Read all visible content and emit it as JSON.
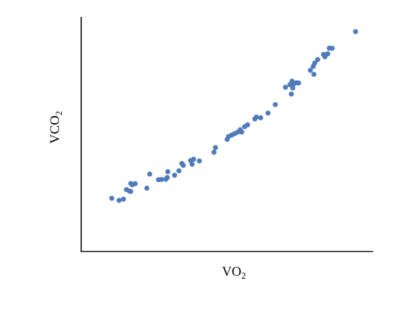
{
  "chart_data": {
    "type": "scatter",
    "title": "",
    "xlabel": {
      "main": "VO",
      "sub": "2"
    },
    "ylabel": {
      "main": "VCO",
      "sub": "2"
    },
    "xlim": [
      0,
      1
    ],
    "ylim": [
      0,
      1
    ],
    "grid": false,
    "legend": "none",
    "tick_labels": false,
    "colors": {
      "points": "#4f7bbd",
      "axes": "#000000"
    },
    "series": [
      {
        "points": [
          [
            0.105,
            0.227
          ],
          [
            0.13,
            0.218
          ],
          [
            0.145,
            0.223
          ],
          [
            0.155,
            0.264
          ],
          [
            0.165,
            0.258
          ],
          [
            0.17,
            0.256
          ],
          [
            0.17,
            0.29
          ],
          [
            0.175,
            0.285
          ],
          [
            0.185,
            0.289
          ],
          [
            0.225,
            0.27
          ],
          [
            0.235,
            0.33
          ],
          [
            0.265,
            0.306
          ],
          [
            0.275,
            0.307
          ],
          [
            0.29,
            0.308
          ],
          [
            0.295,
            0.315
          ],
          [
            0.297,
            0.34
          ],
          [
            0.32,
            0.325
          ],
          [
            0.335,
            0.344
          ],
          [
            0.345,
            0.375
          ],
          [
            0.35,
            0.367
          ],
          [
            0.375,
            0.388
          ],
          [
            0.38,
            0.372
          ],
          [
            0.385,
            0.393
          ],
          [
            0.405,
            0.386
          ],
          [
            0.455,
            0.423
          ],
          [
            0.46,
            0.443
          ],
          [
            0.5,
            0.478
          ],
          [
            0.505,
            0.49
          ],
          [
            0.515,
            0.496
          ],
          [
            0.525,
            0.502
          ],
          [
            0.535,
            0.508
          ],
          [
            0.545,
            0.519
          ],
          [
            0.55,
            0.509
          ],
          [
            0.56,
            0.532
          ],
          [
            0.57,
            0.54
          ],
          [
            0.595,
            0.565
          ],
          [
            0.6,
            0.573
          ],
          [
            0.615,
            0.57
          ],
          [
            0.64,
            0.59
          ],
          [
            0.665,
            0.626
          ],
          [
            0.7,
            0.7
          ],
          [
            0.715,
            0.711
          ],
          [
            0.72,
            0.671
          ],
          [
            0.722,
            0.726
          ],
          [
            0.725,
            0.697
          ],
          [
            0.73,
            0.715
          ],
          [
            0.737,
            0.719
          ],
          [
            0.745,
            0.718
          ],
          [
            0.785,
            0.772
          ],
          [
            0.795,
            0.789
          ],
          [
            0.797,
            0.755
          ],
          [
            0.8,
            0.803
          ],
          [
            0.81,
            0.818
          ],
          [
            0.83,
            0.84
          ],
          [
            0.835,
            0.83
          ],
          [
            0.84,
            0.84
          ],
          [
            0.845,
            0.843
          ],
          [
            0.85,
            0.867
          ],
          [
            0.86,
            0.866
          ],
          [
            0.94,
            0.937
          ]
        ]
      }
    ]
  }
}
